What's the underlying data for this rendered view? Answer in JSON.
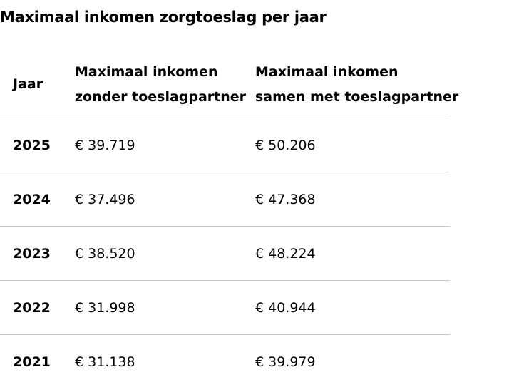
{
  "page": {
    "title": "Maximaal inkomen zorgtoeslag per jaar"
  },
  "table": {
    "headers": {
      "year": "Jaar",
      "solo_line1": "Maximaal inkomen",
      "solo_line2": "zonder toeslagpartner",
      "partner_line1": "Maximaal inkomen",
      "partner_line2": "samen met toeslagpartner"
    },
    "rows": [
      {
        "year": "2025",
        "solo": "€ 39.719",
        "partner": "€ 50.206"
      },
      {
        "year": "2024",
        "solo": "€ 37.496",
        "partner": "€ 47.368"
      },
      {
        "year": "2023",
        "solo": "€ 38.520",
        "partner": "€ 48.224"
      },
      {
        "year": "2022",
        "solo": "€ 31.998",
        "partner": "€ 40.944"
      },
      {
        "year": "2021",
        "solo": "€ 31.138",
        "partner": "€ 39.979"
      }
    ]
  }
}
